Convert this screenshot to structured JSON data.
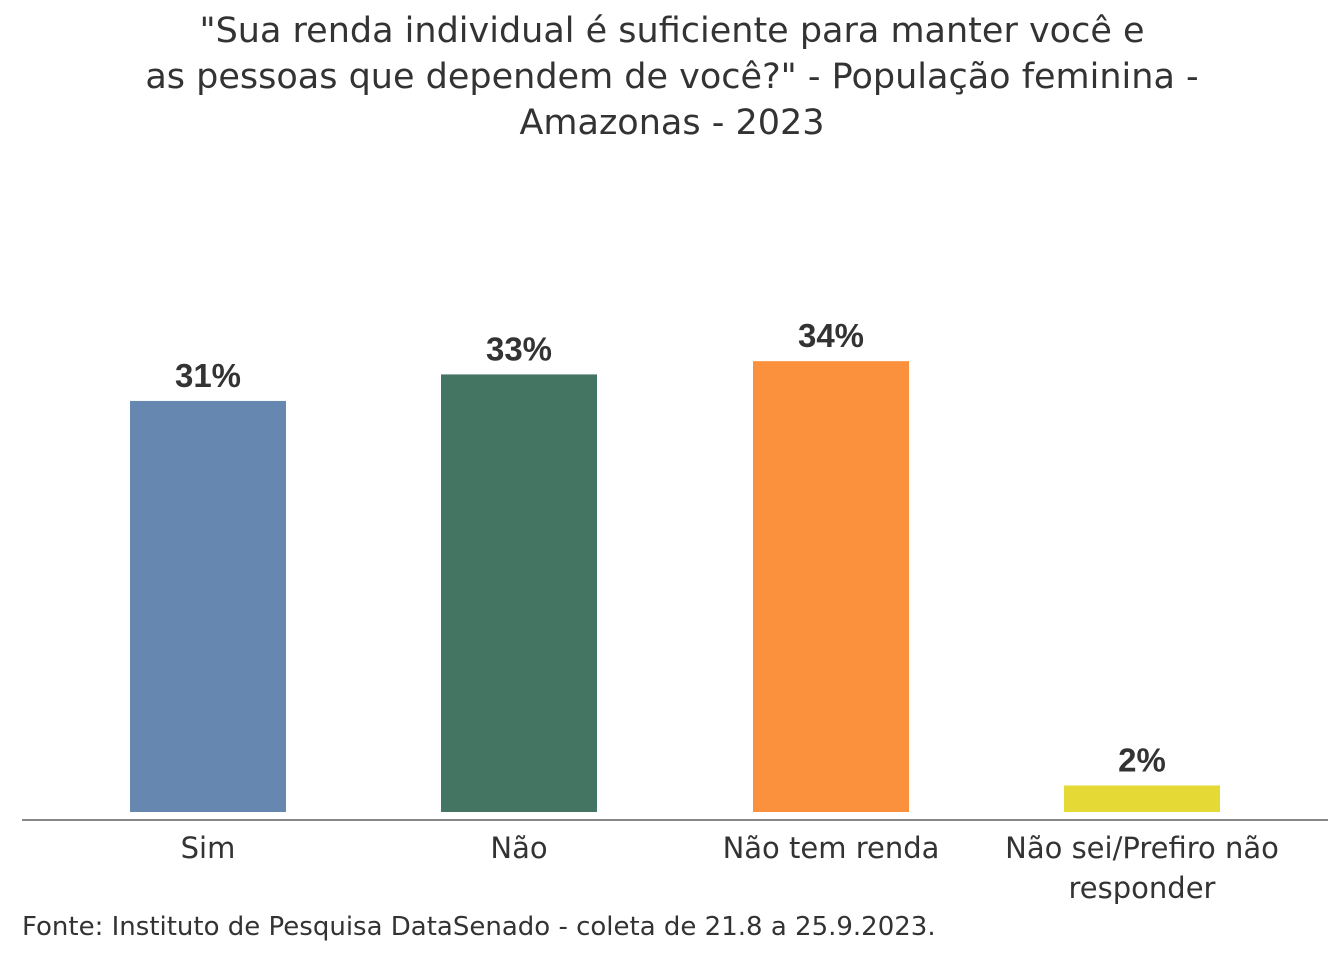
{
  "chart_data": {
    "type": "bar",
    "title_lines": [
      "\"Sua renda individual é suficiente para manter você e",
      "as pessoas que dependem de você?\" - População feminina -",
      "Amazonas - 2023"
    ],
    "categories": [
      "Sim",
      "Não",
      "Não tem renda",
      "Não sei/Prefiro não responder"
    ],
    "category_lines": [
      [
        "Sim"
      ],
      [
        "Não"
      ],
      [
        "Não tem renda"
      ],
      [
        "Não sei/Prefiro não",
        "responder"
      ]
    ],
    "values": [
      31,
      33,
      34,
      2
    ],
    "data_labels": [
      "31%",
      "33%",
      "34%",
      "2%"
    ],
    "colors": [
      "#6688B0",
      "#447563",
      "#FB913D",
      "#E5D935"
    ],
    "xlabel": "",
    "ylabel": "",
    "ylim": [
      0,
      40
    ],
    "grid": false,
    "legend": "none"
  },
  "source": "Fonte: Instituto de Pesquisa DataSenado - coleta de 21.8 a 25.9.2023."
}
